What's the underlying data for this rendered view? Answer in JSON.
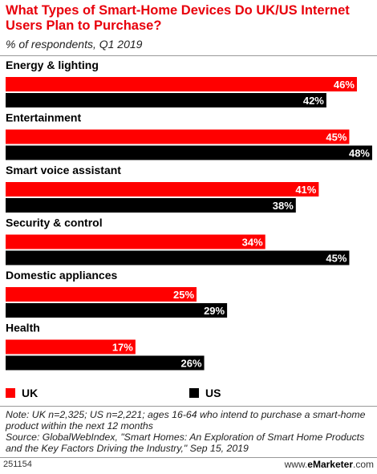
{
  "title": "What Types of Smart-Home Devices Do UK/US Internet Users Plan to Purchase?",
  "subtitle": "% of respondents, Q1 2019",
  "chart_data": {
    "type": "bar",
    "orientation": "horizontal",
    "categories": [
      "Energy & lighting",
      "Entertainment",
      "Smart voice assistant",
      "Security & control",
      "Domestic appliances",
      "Health"
    ],
    "series": [
      {
        "name": "UK",
        "color": "#ff0000",
        "values": [
          46,
          45,
          41,
          34,
          25,
          17
        ]
      },
      {
        "name": "US",
        "color": "#000000",
        "values": [
          42,
          48,
          38,
          45,
          29,
          26
        ]
      }
    ],
    "value_suffix": "%",
    "xlim": [
      0,
      48
    ],
    "grid": false,
    "legend": "bottom-left"
  },
  "legend": {
    "uk": "UK",
    "us": "US"
  },
  "notes": {
    "note": "Note: UK n=2,325; US n=2,221; ages 16-64 who intend to purchase a smart-home product within the next 12 months",
    "source": "Source: GlobalWebIndex, \"Smart Homes: An Exploration of Smart Home Products and the Key Factors Driving the Industry,\" Sep 15, 2019"
  },
  "footer": {
    "id": "251154",
    "logo_prefix": "www.",
    "logo_brand": "eMarketer",
    "logo_suffix": ".com"
  }
}
